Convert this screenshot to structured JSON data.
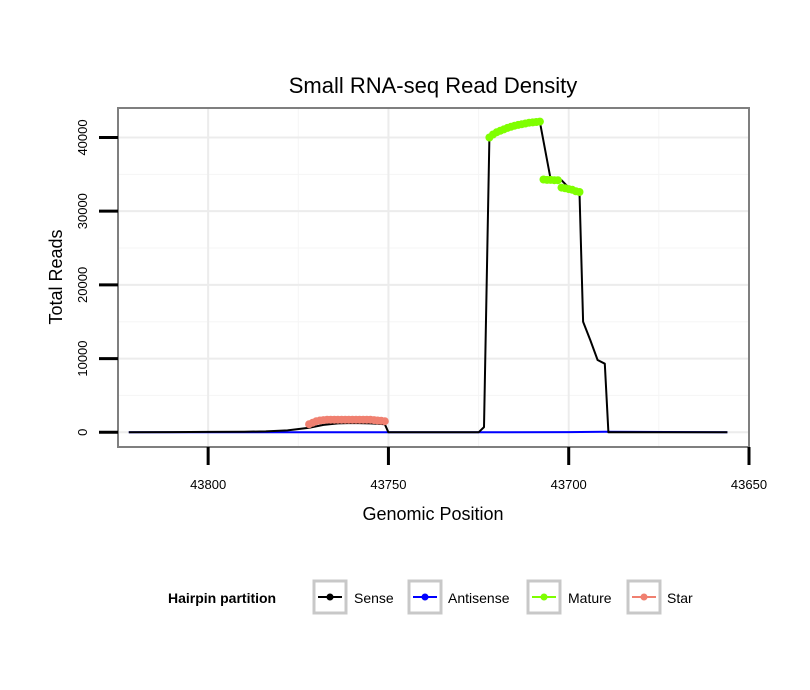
{
  "chart_data": {
    "type": "line",
    "title": "Small RNA-seq Read Density",
    "xlabel": "Genomic Position",
    "ylabel": "Total Reads",
    "xlim": [
      43825,
      43650
    ],
    "ylim": [
      -2000,
      44000
    ],
    "x_reversed": true,
    "x_ticks": [
      43800,
      43750,
      43700,
      43650
    ],
    "x_tick_labels": [
      "43800",
      "43750",
      "43700",
      "43650"
    ],
    "y_ticks": [
      0,
      10000,
      20000,
      30000,
      40000
    ],
    "y_tick_labels": [
      "0",
      "10000",
      "20000",
      "30000",
      "40000"
    ],
    "grid": true,
    "legend": {
      "title": "Hairpin partition",
      "position": "bottom",
      "entries": [
        {
          "label": "Sense",
          "color": "#000000"
        },
        {
          "label": "Antisense",
          "color": "#0000ff"
        },
        {
          "label": "Mature",
          "color": "#7fff00"
        },
        {
          "label": "Star",
          "color": "#f08070"
        }
      ]
    },
    "series": [
      {
        "name": "Sense",
        "color": "#000000",
        "style": "line",
        "x": [
          43822,
          43810,
          43800,
          43790,
          43784,
          43778,
          43772,
          43768,
          43764,
          43760,
          43755,
          43751,
          43750,
          43740,
          43730,
          43725,
          43723.5,
          43722,
          43718,
          43714,
          43710,
          43708,
          43705,
          43702,
          43700,
          43698,
          43697,
          43696,
          43694,
          43692,
          43690,
          43689,
          43688,
          43675,
          43665,
          43656
        ],
        "y": [
          0,
          20,
          50,
          80,
          120,
          250,
          600,
          1000,
          1200,
          1250,
          1200,
          1100,
          0,
          0,
          0,
          0,
          700,
          40000,
          41000,
          41600,
          42000,
          42100,
          34300,
          34200,
          33200,
          32700,
          32500,
          15000,
          12500,
          9800,
          9300,
          0,
          0,
          0,
          0,
          0
        ]
      },
      {
        "name": "Antisense",
        "color": "#0000ff",
        "style": "line",
        "x": [
          43822,
          43760,
          43725,
          43700,
          43690,
          43656
        ],
        "y": [
          0,
          0,
          0,
          20,
          60,
          0
        ]
      },
      {
        "name": "Mature",
        "color": "#7fff00",
        "style": "points",
        "x": [
          43722,
          43721,
          43720,
          43719,
          43718,
          43717,
          43716,
          43715,
          43714,
          43713,
          43712,
          43711,
          43710,
          43709,
          43708,
          43707,
          43706,
          43705,
          43704,
          43703,
          43702,
          43701,
          43700,
          43699,
          43698,
          43697
        ],
        "y": [
          40000,
          40400,
          40700,
          40900,
          41100,
          41300,
          41450,
          41600,
          41700,
          41800,
          41900,
          42000,
          42050,
          42100,
          42150,
          34300,
          34250,
          34250,
          34200,
          34200,
          33200,
          33100,
          33000,
          32900,
          32700,
          32600
        ]
      },
      {
        "name": "Star",
        "color": "#f08070",
        "style": "points",
        "x": [
          43772,
          43771,
          43770,
          43769,
          43768,
          43767,
          43766,
          43765,
          43764,
          43763,
          43762,
          43761,
          43760,
          43759,
          43758,
          43757,
          43756,
          43755,
          43754,
          43753,
          43752,
          43751
        ],
        "y": [
          1100,
          1300,
          1500,
          1600,
          1650,
          1700,
          1700,
          1700,
          1700,
          1700,
          1700,
          1700,
          1700,
          1700,
          1700,
          1700,
          1700,
          1700,
          1650,
          1600,
          1550,
          1500
        ]
      }
    ]
  }
}
